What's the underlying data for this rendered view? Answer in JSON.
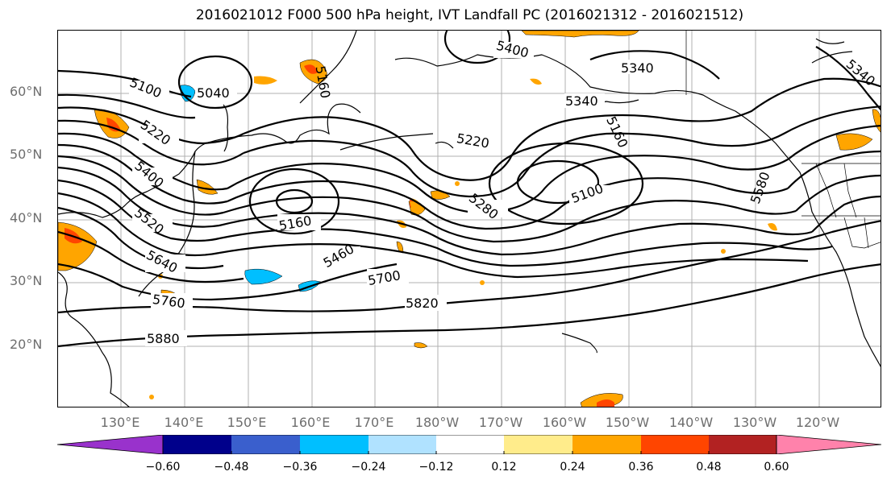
{
  "title": "2016021012 F000 500 hPa height, IVT Landfall PC (2016021312 - 2016021512)",
  "map": {
    "lat_labels": [
      "60°N",
      "50°N",
      "40°N",
      "30°N",
      "20°N"
    ],
    "lon_labels": [
      "130°E",
      "140°E",
      "150°E",
      "160°E",
      "170°E",
      "180°W",
      "170°W",
      "160°W",
      "150°W",
      "140°W",
      "130°W",
      "120°W"
    ],
    "contour_labels": [
      "5400",
      "5340",
      "5340",
      "5340",
      "5100",
      "5040",
      "5160",
      "5220",
      "5400",
      "5520",
      "5640",
      "5760",
      "5880",
      "5160",
      "5460",
      "5700",
      "5820",
      "5220",
      "5160",
      "5100",
      "5280",
      "5580"
    ],
    "line_color": "#000000",
    "grid_color": "#b0b0b0"
  },
  "colorbar": {
    "colors": [
      "#9932cc",
      "#00008b",
      "#3a5fcd",
      "#00bfff",
      "#b0e2ff",
      "#ffffff",
      "#ffec8b",
      "#ffa500",
      "#ff4500",
      "#b22222",
      "#ff82ab"
    ],
    "ticks": [
      "−0.60",
      "−0.48",
      "−0.36",
      "−0.24",
      "−0.12",
      "0.12",
      "0.24",
      "0.36",
      "0.48",
      "0.60"
    ]
  }
}
